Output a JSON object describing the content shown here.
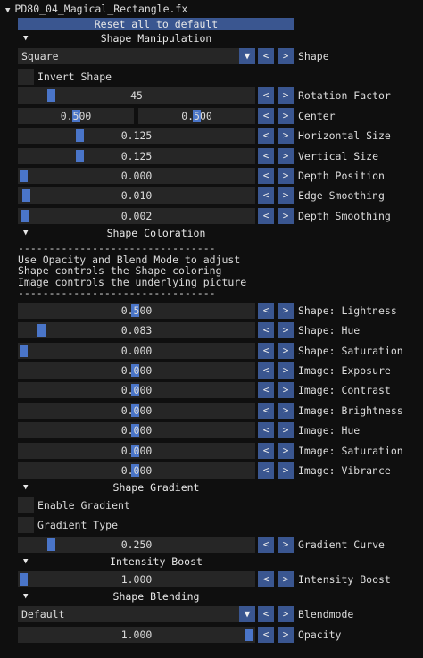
{
  "title": "PD80_04_Magical_Rectangle.fx",
  "reset_label": "Reset all to default",
  "sections": {
    "manipulation": "Shape Manipulation",
    "coloration": "Shape Coloration",
    "gradient": "Shape Gradient",
    "intensity": "Intensity Boost",
    "blending": "Shape Blending"
  },
  "shape": {
    "value": "Square",
    "label": "Shape"
  },
  "invert_shape": {
    "label": "Invert Shape",
    "checked": false
  },
  "rotation": {
    "value": "45",
    "label": "Rotation Factor"
  },
  "center": {
    "x": "0.500",
    "y": "0.500",
    "label": "Center"
  },
  "horizontal_size": {
    "value": "0.125",
    "label": "Horizontal Size"
  },
  "vertical_size": {
    "value": "0.125",
    "label": "Vertical Size"
  },
  "depth_position": {
    "value": "0.000",
    "label": "Depth Position"
  },
  "edge_smoothing": {
    "value": "0.010",
    "label": "Edge Smoothing"
  },
  "depth_smoothing": {
    "value": "0.002",
    "label": "Depth Smoothing"
  },
  "coloration_text": {
    "line1": "--------------------------------",
    "line2": "Use Opacity and Blend Mode to adjust",
    "line3": "Shape controls the Shape coloring",
    "line4": "Image controls the underlying picture",
    "line5": "--------------------------------"
  },
  "shape_lightness": {
    "value": "0.500",
    "label": "Shape: Lightness"
  },
  "shape_hue": {
    "value": "0.083",
    "label": "Shape: Hue"
  },
  "shape_saturation": {
    "value": "0.000",
    "label": "Shape: Saturation"
  },
  "image_exposure": {
    "value": "0.000",
    "label": "Image: Exposure"
  },
  "image_contrast": {
    "value": "0.000",
    "label": "Image: Contrast"
  },
  "image_brightness": {
    "value": "0.000",
    "label": "Image: Brightness"
  },
  "image_hue": {
    "value": "0.000",
    "label": "Image: Hue"
  },
  "image_saturation": {
    "value": "0.000",
    "label": "Image: Saturation"
  },
  "image_vibrance": {
    "value": "0.000",
    "label": "Image: Vibrance"
  },
  "enable_gradient": {
    "label": "Enable Gradient",
    "checked": false
  },
  "gradient_type": {
    "label": "Gradient Type",
    "checked": false
  },
  "gradient_curve": {
    "value": "0.250",
    "label": "Gradient Curve"
  },
  "intensity_boost": {
    "value": "1.000",
    "label": "Intensity Boost"
  },
  "blendmode": {
    "value": "Default",
    "label": "Blendmode"
  },
  "opacity": {
    "value": "1.000",
    "label": "Opacity"
  },
  "arrows": {
    "left": "<",
    "right": ">"
  },
  "glyphs": {
    "collapse": "▼",
    "dropdown": "▼"
  },
  "colors": {
    "accent": "#3a5690",
    "grab": "#4a75c8",
    "frame": "#262626",
    "background": "#0f0f0f"
  }
}
